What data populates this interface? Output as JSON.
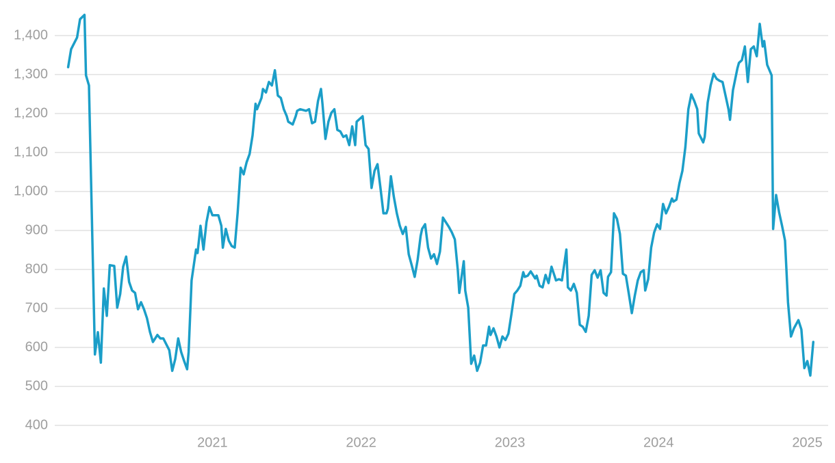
{
  "chart_data": {
    "type": "line",
    "x": [
      2020.03,
      2020.05,
      2020.09,
      2020.11,
      2020.14,
      2020.15,
      2020.17,
      2020.21,
      2020.23,
      2020.25,
      2020.27,
      2020.29,
      2020.31,
      2020.34,
      2020.36,
      2020.38,
      2020.4,
      2020.42,
      2020.44,
      2020.46,
      2020.48,
      2020.5,
      2020.52,
      2020.54,
      2020.56,
      2020.58,
      2020.6,
      2020.63,
      2020.65,
      2020.67,
      2020.71,
      2020.73,
      2020.75,
      2020.77,
      2020.79,
      2020.81,
      2020.83,
      2020.84,
      2020.86,
      2020.89,
      2020.9,
      2020.92,
      2020.94,
      2020.96,
      2020.98,
      2021.0,
      2021.04,
      2021.06,
      2021.07,
      2021.09,
      2021.11,
      2021.13,
      2021.15,
      2021.17,
      2021.19,
      2021.21,
      2021.23,
      2021.25,
      2021.27,
      2021.29,
      2021.3,
      2021.33,
      2021.34,
      2021.36,
      2021.38,
      2021.4,
      2021.42,
      2021.44,
      2021.46,
      2021.48,
      2021.5,
      2021.51,
      2021.54,
      2021.56,
      2021.57,
      2021.59,
      2021.63,
      2021.65,
      2021.67,
      2021.69,
      2021.71,
      2021.73,
      2021.74,
      2021.76,
      2021.78,
      2021.8,
      2021.82,
      2021.84,
      2021.86,
      2021.88,
      2021.9,
      2021.92,
      2021.94,
      2021.96,
      2021.97,
      2022.01,
      2022.03,
      2022.05,
      2022.07,
      2022.09,
      2022.11,
      2022.13,
      2022.15,
      2022.17,
      2022.18,
      2022.2,
      2022.22,
      2022.24,
      2022.26,
      2022.28,
      2022.3,
      2022.32,
      2022.34,
      2022.36,
      2022.38,
      2022.4,
      2022.41,
      2022.43,
      2022.45,
      2022.47,
      2022.49,
      2022.51,
      2022.53,
      2022.55,
      2022.57,
      2022.59,
      2022.61,
      2022.63,
      2022.65,
      2022.66,
      2022.69,
      2022.7,
      2022.72,
      2022.74,
      2022.76,
      2022.78,
      2022.8,
      2022.82,
      2022.84,
      2022.86,
      2022.87,
      2022.89,
      2022.91,
      2022.93,
      2022.95,
      2022.97,
      2022.99,
      2023.01,
      2023.03,
      2023.05,
      2023.07,
      2023.09,
      2023.1,
      2023.12,
      2023.14,
      2023.17,
      2023.18,
      2023.2,
      2023.22,
      2023.24,
      2023.26,
      2023.28,
      2023.3,
      2023.31,
      2023.33,
      2023.35,
      2023.38,
      2023.39,
      2023.41,
      2023.43,
      2023.45,
      2023.47,
      2023.49,
      2023.51,
      2023.53,
      2023.55,
      2023.57,
      2023.59,
      2023.61,
      2023.63,
      2023.65,
      2023.66,
      2023.68,
      2023.7,
      2023.72,
      2023.74,
      2023.76,
      2023.78,
      2023.8,
      2023.82,
      2023.84,
      2023.86,
      2023.88,
      2023.9,
      2023.91,
      2023.93,
      2023.95,
      2023.97,
      2023.99,
      2024.01,
      2024.03,
      2024.05,
      2024.07,
      2024.09,
      2024.1,
      2024.12,
      2024.14,
      2024.16,
      2024.18,
      2024.2,
      2024.22,
      2024.24,
      2024.26,
      2024.27,
      2024.3,
      2024.31,
      2024.33,
      2024.35,
      2024.37,
      2024.39,
      2024.41,
      2024.43,
      2024.45,
      2024.47,
      2024.48,
      2024.5,
      2024.53,
      2024.54,
      2024.56,
      2024.58,
      2024.6,
      2024.62,
      2024.64,
      2024.66,
      2024.68,
      2024.7,
      2024.71,
      2024.73,
      2024.76,
      2024.77,
      2024.79,
      2024.81,
      2024.83,
      2024.85,
      2024.87,
      2024.89,
      2024.91,
      2024.93,
      2024.94,
      2024.96,
      2024.98,
      2025.0,
      2025.02,
      2025.04
    ],
    "series": [
      {
        "color": "#1b9ec8",
        "values": [
          1319,
          1365,
          1395,
          1442,
          1453,
          1298,
          1272,
          582,
          639,
          561,
          751,
          681,
          811,
          809,
          702,
          737,
          807,
          833,
          768,
          746,
          740,
          698,
          716,
          698,
          675,
          640,
          614,
          632,
          623,
          623,
          593,
          540,
          570,
          623,
          588,
          565,
          544,
          588,
          772,
          851,
          842,
          912,
          851,
          921,
          960,
          939,
          939,
          912,
          856,
          904,
          874,
          860,
          856,
          947,
          1061,
          1044,
          1075,
          1096,
          1144,
          1225,
          1211,
          1240,
          1263,
          1254,
          1281,
          1272,
          1311,
          1246,
          1240,
          1211,
          1193,
          1179,
          1172,
          1193,
          1207,
          1211,
          1207,
          1211,
          1175,
          1179,
          1232,
          1263,
          1225,
          1135,
          1179,
          1202,
          1211,
          1158,
          1154,
          1140,
          1144,
          1119,
          1167,
          1119,
          1179,
          1193,
          1119,
          1109,
          1009,
          1053,
          1070,
          1009,
          944,
          944,
          956,
          1039,
          986,
          944,
          912,
          891,
          909,
          839,
          811,
          781,
          825,
          886,
          904,
          916,
          856,
          828,
          839,
          814,
          846,
          933,
          921,
          909,
          895,
          877,
          798,
          740,
          821,
          746,
          702,
          558,
          579,
          540,
          561,
          605,
          605,
          653,
          632,
          649,
          628,
          600,
          628,
          619,
          635,
          684,
          737,
          746,
          758,
          793,
          781,
          784,
          795,
          777,
          784,
          758,
          754,
          786,
          765,
          807,
          784,
          772,
          775,
          772,
          851,
          754,
          746,
          763,
          740,
          658,
          653,
          640,
          681,
          786,
          798,
          779,
          798,
          740,
          733,
          781,
          793,
          944,
          930,
          891,
          789,
          784,
          737,
          688,
          733,
          772,
          793,
          798,
          746,
          775,
          856,
          895,
          916,
          904,
          968,
          944,
          961,
          982,
          974,
          979,
          1021,
          1053,
          1114,
          1211,
          1249,
          1232,
          1211,
          1149,
          1126,
          1140,
          1228,
          1272,
          1302,
          1289,
          1284,
          1281,
          1246,
          1211,
          1184,
          1260,
          1316,
          1330,
          1337,
          1372,
          1281,
          1365,
          1372,
          1347,
          1430,
          1372,
          1386,
          1325,
          1298,
          904,
          991,
          947,
          912,
          874,
          716,
          628,
          649,
          663,
          670,
          646,
          547,
          565,
          528,
          614
        ]
      }
    ],
    "xlim": [
      2019.94,
      2025.14
    ],
    "xticks": [
      2021,
      2022,
      2023,
      2024,
      2025
    ],
    "ylim": [
      400,
      1480
    ],
    "yticks": [
      400,
      500,
      600,
      700,
      800,
      900,
      {
        "value": 1000,
        "label": "1,000"
      },
      {
        "value": 1100,
        "label": "1,100"
      },
      {
        "value": 1200,
        "label": "1,200"
      },
      {
        "value": 1300,
        "label": "1,300"
      },
      {
        "value": 1400,
        "label": "1,400"
      }
    ],
    "grid": true
  }
}
